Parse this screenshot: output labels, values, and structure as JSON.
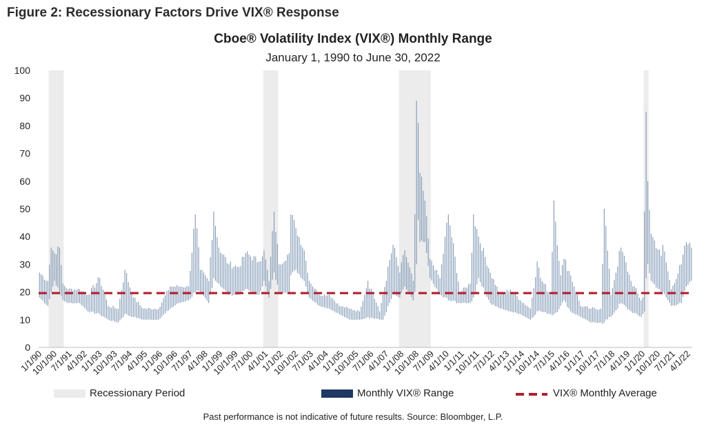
{
  "figure_title": "Figure 2: Recessionary Factors Drive VIX® Response",
  "footnote": "Past performance is not indicative of future results. Source: Bloombger, L.P.",
  "colors": {
    "range": "#7d96b4",
    "legend_range": "#1f3864",
    "average": "#b11f2e",
    "recession": "#ececec"
  },
  "chart_data": {
    "type": "bar",
    "title": "Cboe® Volatility Index (VIX®) Monthly Range",
    "subtitle": "January 1, 1990 to June 30, 2022",
    "xlabel": "",
    "ylabel": "",
    "ylim": [
      0,
      100
    ],
    "yticks": [
      0,
      10,
      20,
      30,
      40,
      50,
      60,
      70,
      80,
      90,
      100
    ],
    "x_start": "1990-01",
    "x_end": "2022-06",
    "xtick_labels": [
      "1/1/90",
      "10/1/90",
      "7/1/91",
      "4/1/92",
      "1/1/93",
      "10/1/93",
      "7/1/94",
      "4/1/95",
      "1/1/96",
      "10/1/96",
      "7/1/97",
      "4/1/98",
      "1/1/99",
      "10/1/99",
      "7/1/00",
      "4/1/01",
      "1/1/02",
      "10/1/02",
      "7/1/03",
      "4/1/04",
      "1/1/05",
      "10/1/05",
      "7/1/06",
      "4/1/07",
      "1/1/08",
      "10/1/08",
      "7/1/09",
      "4/1/10",
      "1/1/11",
      "10/1/11",
      "7/1/12",
      "4/1/13",
      "1/1/14",
      "10/1/14",
      "7/1/15",
      "4/1/16",
      "1/1/17",
      "10/1/17",
      "7/1/18",
      "4/1/19",
      "1/1/20",
      "10/1/20",
      "7/1/21",
      "4/1/22"
    ],
    "recessions": [
      {
        "start": "1990-07",
        "end": "1991-03"
      },
      {
        "start": "2001-03",
        "end": "2001-11"
      },
      {
        "start": "2007-12",
        "end": "2009-06"
      },
      {
        "start": "2020-02",
        "end": "2020-04"
      }
    ],
    "average": 19.6,
    "anchors": [
      [
        "1990-01",
        18,
        27
      ],
      [
        "1990-06",
        15,
        24
      ],
      [
        "1990-08",
        20,
        36
      ],
      [
        "1990-10",
        24,
        34
      ],
      [
        "1991-01",
        20,
        36
      ],
      [
        "1991-03",
        17,
        23
      ],
      [
        "1991-06",
        16,
        21
      ],
      [
        "1992-01",
        16,
        21
      ],
      [
        "1992-06",
        13,
        19
      ],
      [
        "1993-01",
        12,
        25
      ],
      [
        "1993-06",
        10,
        15
      ],
      [
        "1993-12",
        9,
        14
      ],
      [
        "1994-04",
        12,
        28
      ],
      [
        "1994-09",
        11,
        18
      ],
      [
        "1995-03",
        10,
        14
      ],
      [
        "1995-12",
        10,
        14
      ],
      [
        "1996-07",
        14,
        22
      ],
      [
        "1996-12",
        16,
        22
      ],
      [
        "1997-06",
        17,
        22
      ],
      [
        "1997-10",
        20,
        48
      ],
      [
        "1998-01",
        20,
        28
      ],
      [
        "1998-06",
        16,
        24
      ],
      [
        "1998-09",
        25,
        49
      ],
      [
        "1998-12",
        23,
        36
      ],
      [
        "1999-06",
        19,
        30
      ],
      [
        "1999-12",
        19,
        29
      ],
      [
        "2000-04",
        21,
        34
      ],
      [
        "2000-12",
        19,
        31
      ],
      [
        "2001-03",
        24,
        35
      ],
      [
        "2001-06",
        18,
        24
      ],
      [
        "2001-09",
        27,
        49
      ],
      [
        "2001-12",
        20,
        30
      ],
      [
        "2002-06",
        20,
        34
      ],
      [
        "2002-07",
        26,
        48
      ],
      [
        "2002-10",
        28,
        43
      ],
      [
        "2003-03",
        24,
        35
      ],
      [
        "2003-06",
        18,
        24
      ],
      [
        "2003-12",
        15,
        19
      ],
      [
        "2004-06",
        14,
        19
      ],
      [
        "2004-12",
        12,
        15
      ],
      [
        "2005-06",
        10,
        14
      ],
      [
        "2005-12",
        10,
        13
      ],
      [
        "2006-05",
        11,
        24
      ],
      [
        "2006-12",
        10,
        13
      ],
      [
        "2007-02",
        10,
        19
      ],
      [
        "2007-08",
        19,
        37
      ],
      [
        "2007-12",
        18,
        27
      ],
      [
        "2008-03",
        22,
        35
      ],
      [
        "2008-08",
        17,
        24
      ],
      [
        "2008-09",
        20,
        48
      ],
      [
        "2008-10",
        30,
        89
      ],
      [
        "2008-11",
        46,
        81
      ],
      [
        "2008-12",
        38,
        63
      ],
      [
        "2009-03",
        38,
        53
      ],
      [
        "2009-06",
        25,
        32
      ],
      [
        "2009-12",
        19,
        25
      ],
      [
        "2010-05",
        17,
        48
      ],
      [
        "2010-12",
        16,
        20
      ],
      [
        "2011-06",
        16,
        23
      ],
      [
        "2011-08",
        18,
        48
      ],
      [
        "2011-11",
        25,
        40
      ],
      [
        "2012-06",
        16,
        27
      ],
      [
        "2012-12",
        14,
        19
      ],
      [
        "2013-06",
        13,
        21
      ],
      [
        "2013-12",
        12,
        17
      ],
      [
        "2014-06",
        10,
        14
      ],
      [
        "2014-10",
        13,
        31
      ],
      [
        "2014-12",
        13,
        25
      ],
      [
        "2015-06",
        12,
        19
      ],
      [
        "2015-08",
        12,
        53
      ],
      [
        "2015-12",
        15,
        26
      ],
      [
        "2016-02",
        17,
        32
      ],
      [
        "2016-06",
        13,
        26
      ],
      [
        "2016-12",
        11,
        15
      ],
      [
        "2017-06",
        9,
        14
      ],
      [
        "2017-12",
        9,
        14
      ],
      [
        "2018-02",
        9,
        50
      ],
      [
        "2018-06",
        11,
        19
      ],
      [
        "2018-12",
        16,
        36
      ],
      [
        "2019-06",
        13,
        24
      ],
      [
        "2019-12",
        11,
        17
      ],
      [
        "2020-01",
        12,
        18
      ],
      [
        "2020-02",
        13,
        49
      ],
      [
        "2020-03",
        25,
        85
      ],
      [
        "2020-04",
        30,
        60
      ],
      [
        "2020-06",
        24,
        41
      ],
      [
        "2020-12",
        20,
        33
      ],
      [
        "2021-01",
        20,
        37
      ],
      [
        "2021-06",
        15,
        21
      ],
      [
        "2021-12",
        16,
        30
      ],
      [
        "2022-03",
        22,
        38
      ],
      [
        "2022-06",
        24,
        36
      ]
    ],
    "legend": {
      "recession": "Recessionary Period",
      "range": "Monthly VIX® Range",
      "average": "VIX® Monthly Average"
    }
  }
}
